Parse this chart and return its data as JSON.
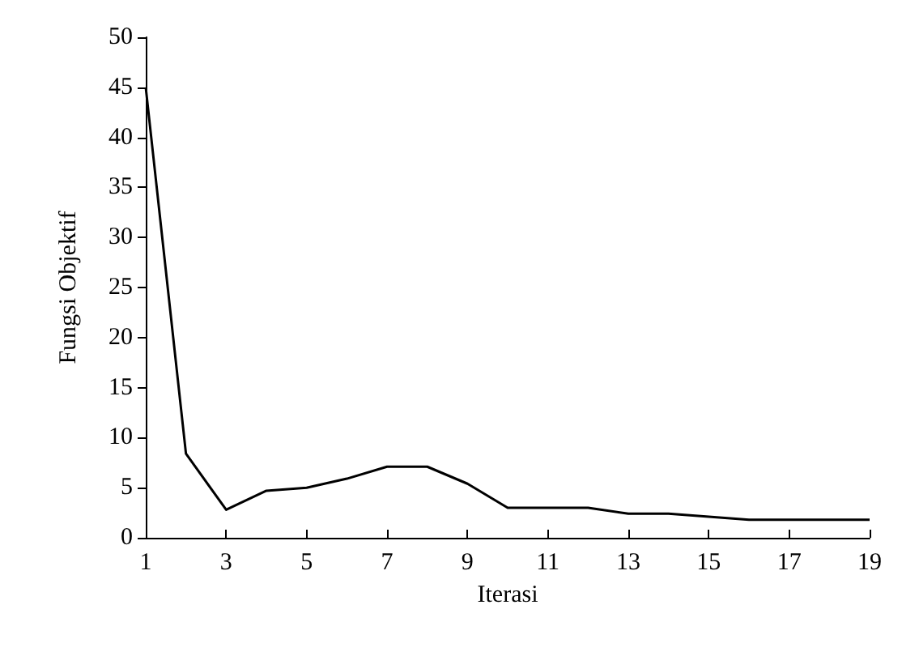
{
  "chart_data": {
    "type": "line",
    "xlabel": "Iterasi",
    "ylabel": "Fungsi Objektif",
    "x": [
      1,
      2,
      3,
      4,
      5,
      6,
      7,
      8,
      9,
      10,
      11,
      12,
      13,
      14,
      15,
      16,
      17,
      18,
      19
    ],
    "series": [
      {
        "color": "#000000",
        "values": [
          45,
          8.4,
          2.8,
          4.7,
          5.0,
          5.9,
          7.1,
          7.1,
          5.4,
          3.0,
          3.0,
          3.0,
          2.4,
          2.4,
          2.1,
          1.8,
          1.8,
          1.8,
          1.8
        ]
      }
    ],
    "xlim": [
      1,
      19
    ],
    "xticks": [
      1,
      3,
      5,
      7,
      9,
      11,
      13,
      15,
      17,
      19
    ],
    "ylim": [
      0,
      50
    ],
    "yticks": [
      0,
      5,
      10,
      15,
      20,
      25,
      30,
      35,
      40,
      45,
      50
    ],
    "grid": false,
    "marker": "none",
    "line_style": "solid"
  }
}
